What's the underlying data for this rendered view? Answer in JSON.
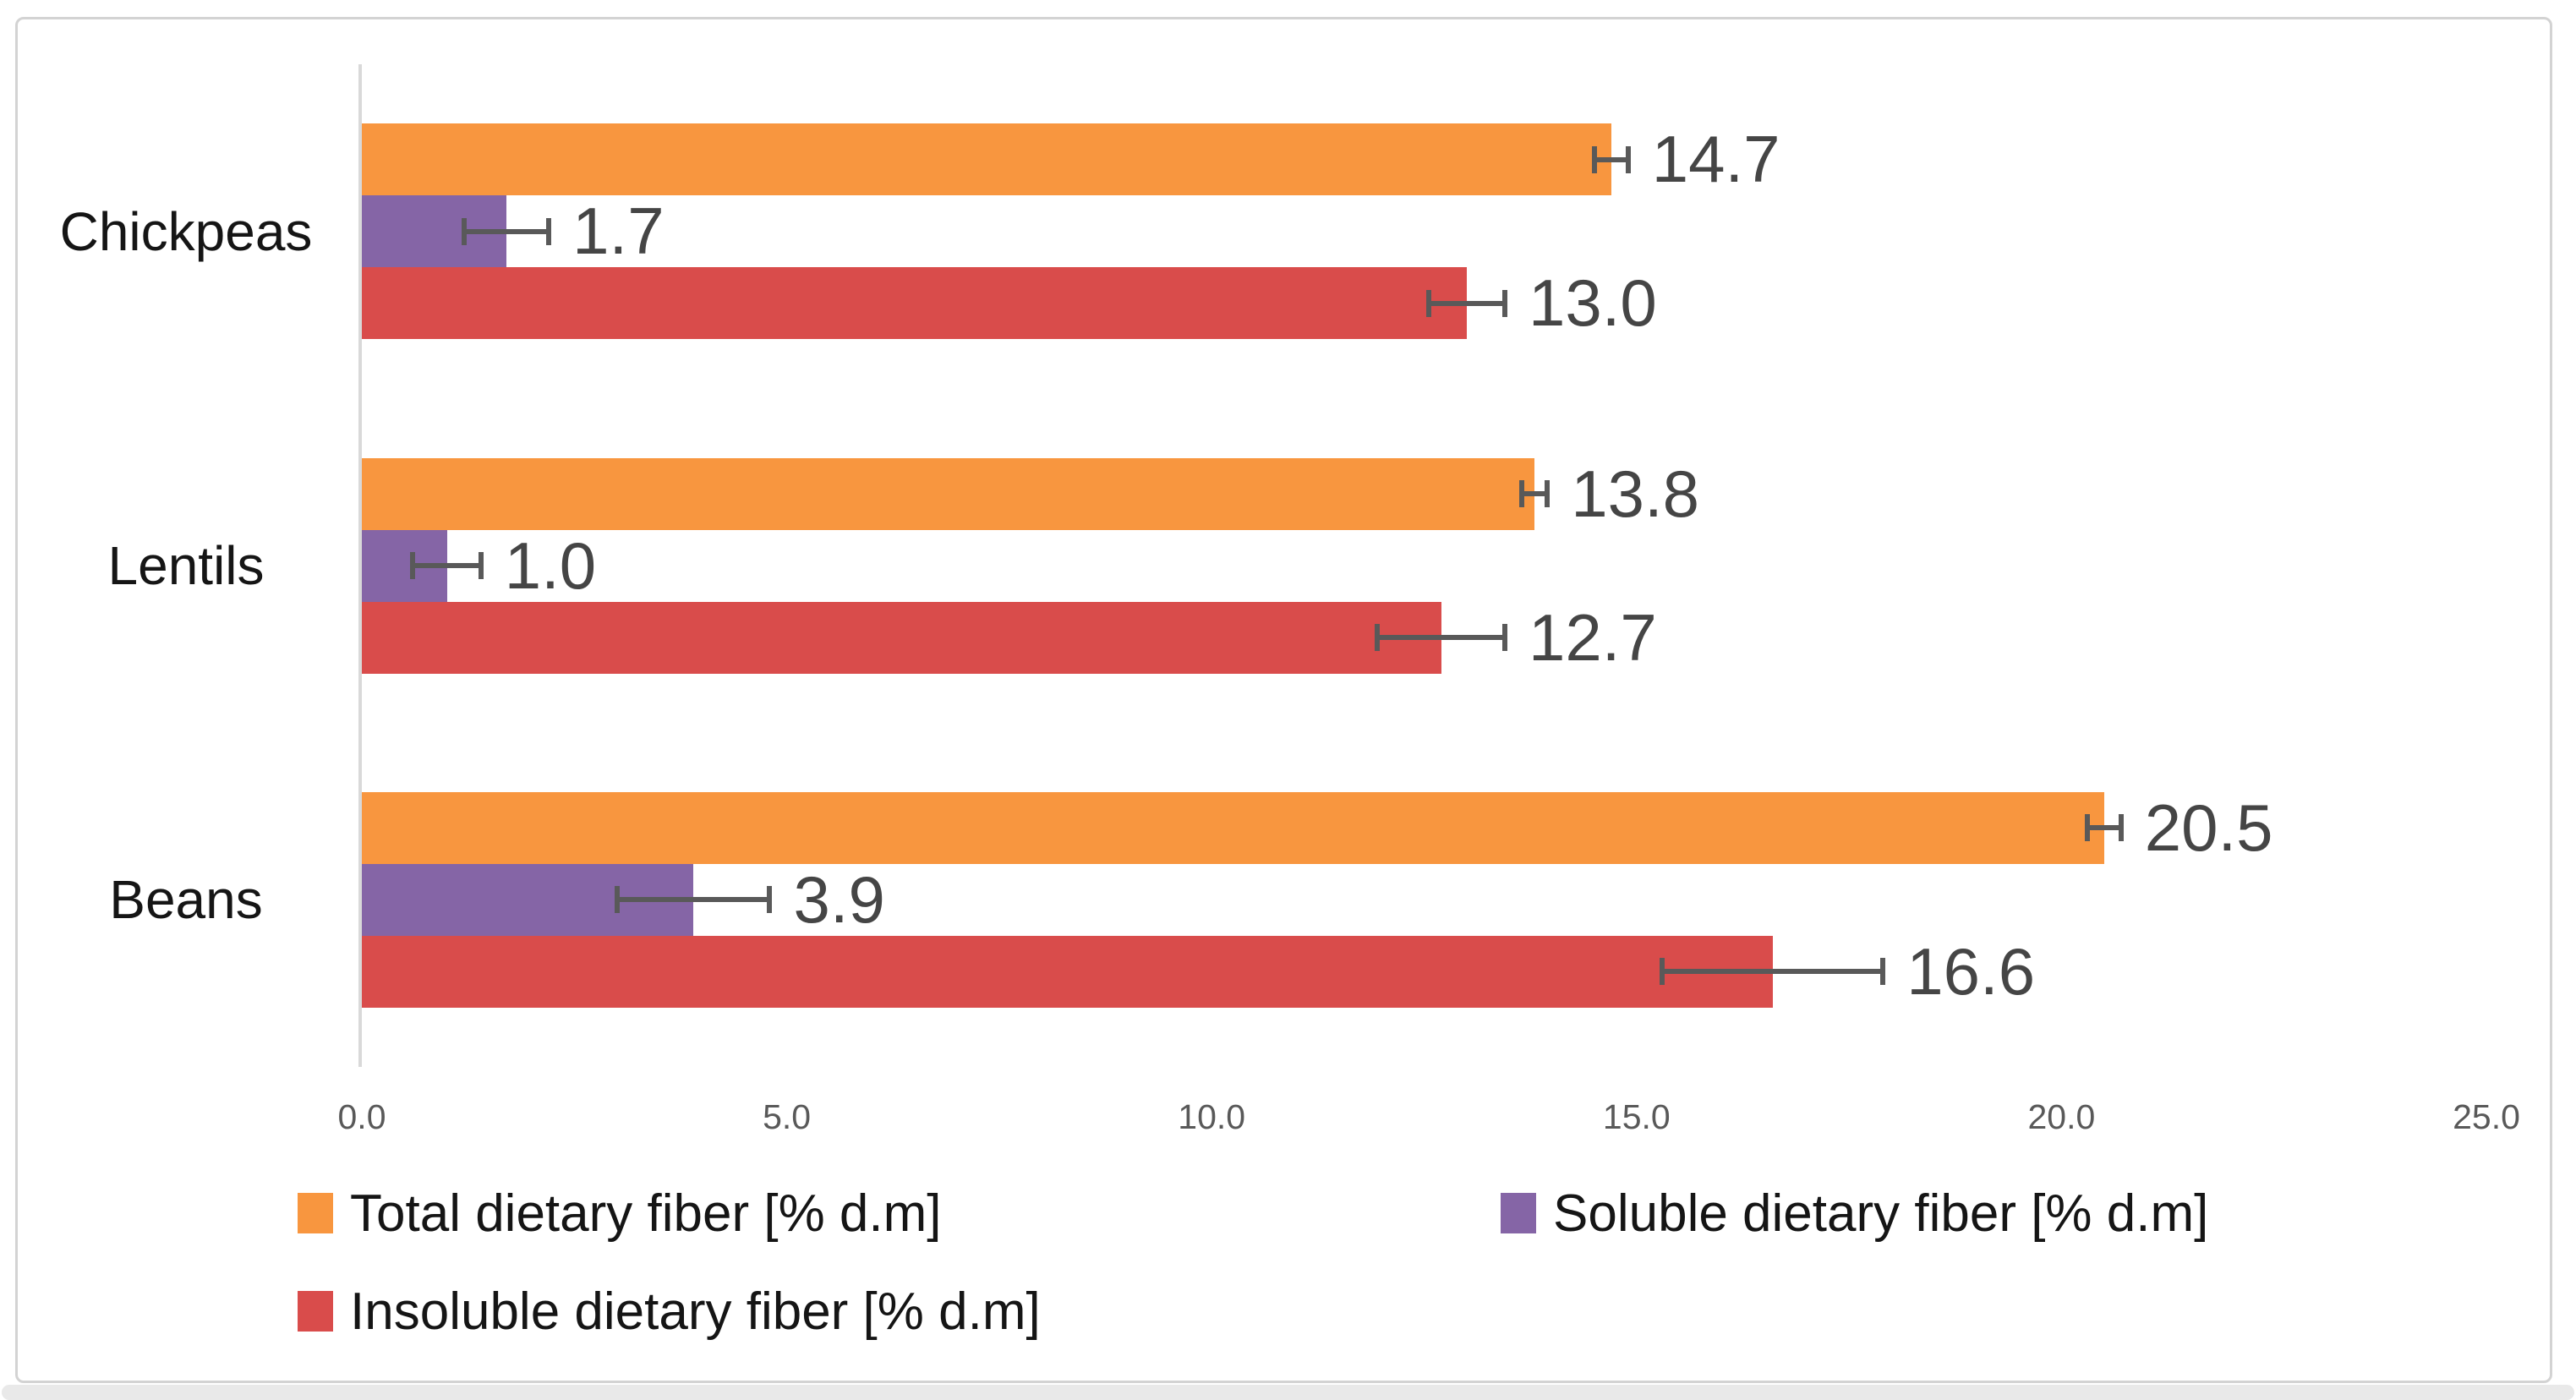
{
  "chart_data": {
    "type": "bar",
    "orientation": "horizontal",
    "title": "",
    "xlabel": "",
    "ylabel": "",
    "categories": [
      "Chickpeas",
      "Lentils",
      "Beans"
    ],
    "series": [
      {
        "name": "Total dietary fiber [% d.m]",
        "color": "#F8963F",
        "values": [
          14.7,
          13.8,
          20.5
        ],
        "errors": [
          0.2,
          0.15,
          0.2
        ],
        "value_labels": [
          "14.7",
          "13.8",
          "20.5"
        ]
      },
      {
        "name": "Soluble dietary fiber [% d.m]",
        "color": "#8565A6",
        "values": [
          1.7,
          1.0,
          3.9
        ],
        "errors": [
          0.5,
          0.4,
          0.9
        ],
        "value_labels": [
          "1.7",
          "1.0",
          "3.9"
        ]
      },
      {
        "name": "Insoluble dietary fiber [% d.m]",
        "color": "#D94C4B",
        "values": [
          13.0,
          12.7,
          16.6
        ],
        "errors": [
          0.45,
          0.75,
          1.3
        ],
        "value_labels": [
          "13.0",
          "12.7",
          "16.6"
        ]
      }
    ],
    "xlim": [
      0,
      25
    ],
    "x_ticks": [
      "0.0",
      "5.0",
      "10.0",
      "15.0",
      "20.0",
      "25.0"
    ],
    "x_tick_values": [
      0,
      5,
      10,
      15,
      20,
      25
    ],
    "grid": false,
    "error_bars": true,
    "legend_position": "bottom",
    "axis_line_color": "#d9d9d9",
    "error_bar_color": "#595959",
    "tick_label_color": "#595959",
    "value_label_color": "#454545",
    "category_label_color": "#151515",
    "frame_border_color": "#d3d3d3"
  }
}
